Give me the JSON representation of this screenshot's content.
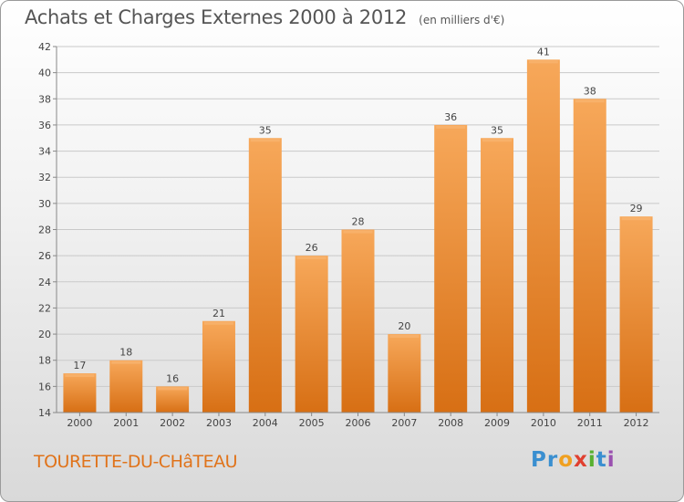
{
  "title": "Achats et Charges Externes 2000 à 2012",
  "subtitle": "(en milliers d'€)",
  "commune": "TOURETTE-DU-CHâTEAU",
  "logo": {
    "letters": [
      "P",
      "r",
      "o",
      "x",
      "i",
      "t",
      "i"
    ],
    "colors": [
      "#3a8fd0",
      "#3a8fd0",
      "#f0a020",
      "#e04030",
      "#58b030",
      "#3a8fd0",
      "#9a50b0"
    ]
  },
  "colors": {
    "bar": "#f08a30",
    "bar_light": "#f6a95a",
    "bar_dark": "#d06a10",
    "grid": "#c8c8c8",
    "commune": "#e0731a"
  },
  "chart_data": {
    "type": "bar",
    "title": "Achats et Charges Externes 2000 à 2012",
    "subtitle": "(en milliers d'€)",
    "categories": [
      "2000",
      "2001",
      "2002",
      "2003",
      "2004",
      "2005",
      "2006",
      "2007",
      "2008",
      "2009",
      "2010",
      "2011",
      "2012"
    ],
    "values": [
      17,
      18,
      16,
      21,
      35,
      26,
      28,
      20,
      36,
      35,
      41,
      38,
      29
    ],
    "ylim": [
      14,
      42
    ],
    "yticks": [
      14,
      16,
      18,
      20,
      22,
      24,
      26,
      28,
      30,
      32,
      34,
      36,
      38,
      40,
      42
    ],
    "grid": true,
    "data_labels": true
  }
}
